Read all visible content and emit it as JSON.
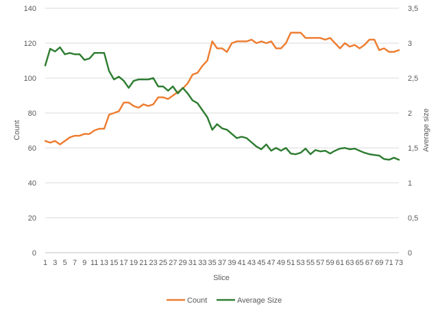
{
  "chart_data": {
    "type": "line",
    "xlabel": "Slice",
    "ylabel_left": "Count",
    "ylabel_right": "Average size",
    "x": [
      1,
      2,
      3,
      4,
      5,
      6,
      7,
      8,
      9,
      10,
      11,
      12,
      13,
      14,
      15,
      16,
      17,
      18,
      19,
      20,
      21,
      22,
      23,
      24,
      25,
      26,
      27,
      28,
      29,
      30,
      31,
      32,
      33,
      34,
      35,
      36,
      37,
      38,
      39,
      40,
      41,
      42,
      43,
      44,
      45,
      46,
      47,
      48,
      49,
      50,
      51,
      52,
      53,
      54,
      55,
      56,
      57,
      58,
      59,
      60,
      61,
      62,
      63,
      64,
      65,
      66,
      67,
      68,
      69,
      70,
      71,
      72,
      73
    ],
    "x_tick_labels": [
      "1",
      "3",
      "5",
      "7",
      "9",
      "11",
      "13",
      "15",
      "17",
      "19",
      "21",
      "23",
      "25",
      "27",
      "29",
      "31",
      "33",
      "35",
      "37",
      "39",
      "41",
      "43",
      "45",
      "47",
      "49",
      "51",
      "53",
      "55",
      "57",
      "59",
      "61",
      "63",
      "65",
      "67",
      "69",
      "71",
      "73"
    ],
    "ylim_left": [
      0,
      140
    ],
    "ylim_right": [
      0,
      3.5
    ],
    "y_ticks_left": [
      "0",
      "20",
      "40",
      "60",
      "80",
      "100",
      "120",
      "140"
    ],
    "y_ticks_right": [
      "0",
      "0,5",
      "1",
      "1,5",
      "2",
      "2,5",
      "3",
      "3,5"
    ],
    "grid": "horizontal",
    "legend_position": "bottom",
    "series": [
      {
        "name": "Count",
        "axis": "left",
        "color": "#ED7D31",
        "values": [
          64,
          63,
          64,
          62,
          64,
          66,
          67,
          67,
          68,
          68,
          70,
          71,
          71,
          79,
          80,
          81,
          86,
          86,
          84,
          83,
          85,
          84,
          85,
          89,
          89,
          88,
          90,
          92,
          94,
          97,
          102,
          103,
          107,
          110,
          121,
          117,
          117,
          115,
          120,
          121,
          121,
          121,
          122,
          120,
          121,
          120,
          121,
          117,
          117,
          120,
          126,
          126,
          126,
          123,
          123,
          123,
          123,
          122,
          123,
          120,
          117,
          120,
          118,
          119,
          117,
          119,
          122,
          122,
          116,
          117,
          115,
          115,
          116
        ]
      },
      {
        "name": "Average Size",
        "axis": "right",
        "color": "#2E7D32",
        "values": [
          2.68,
          2.92,
          2.88,
          2.94,
          2.84,
          2.86,
          2.84,
          2.84,
          2.76,
          2.78,
          2.86,
          2.86,
          2.86,
          2.6,
          2.48,
          2.52,
          2.46,
          2.36,
          2.46,
          2.48,
          2.48,
          2.48,
          2.5,
          2.38,
          2.38,
          2.32,
          2.38,
          2.28,
          2.36,
          2.28,
          2.18,
          2.14,
          2.04,
          1.94,
          1.76,
          1.84,
          1.78,
          1.76,
          1.7,
          1.64,
          1.66,
          1.64,
          1.58,
          1.52,
          1.48,
          1.55,
          1.46,
          1.5,
          1.46,
          1.5,
          1.42,
          1.41,
          1.43,
          1.49,
          1.41,
          1.47,
          1.45,
          1.46,
          1.42,
          1.46,
          1.49,
          1.5,
          1.48,
          1.49,
          1.46,
          1.43,
          1.41,
          1.4,
          1.39,
          1.34,
          1.33,
          1.36,
          1.33
        ]
      }
    ]
  }
}
